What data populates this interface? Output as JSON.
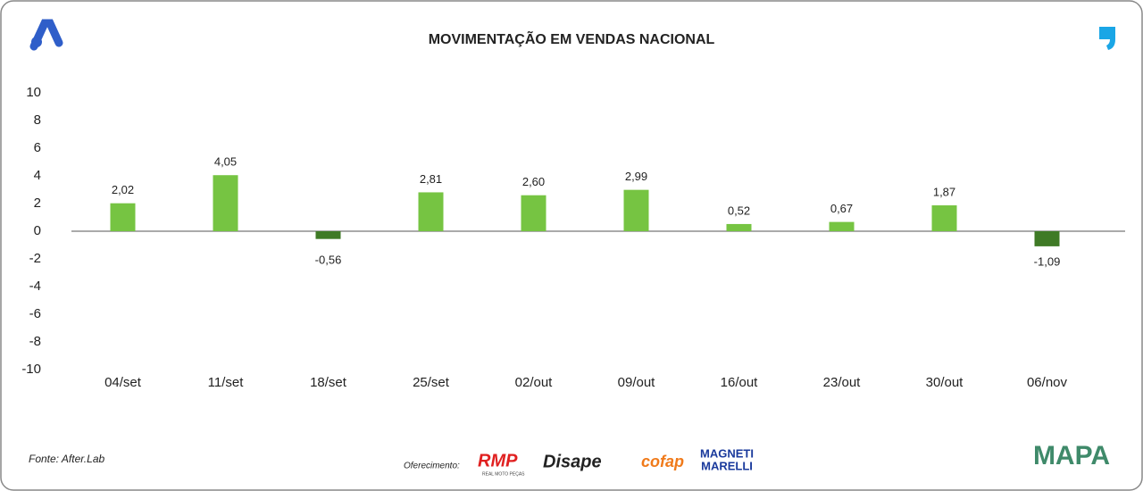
{
  "chart_data": {
    "type": "bar",
    "title": "MOVIMENTAÇÃO EM VENDAS NACIONAL",
    "categories": [
      "04/set",
      "11/set",
      "18/set",
      "25/set",
      "02/out",
      "09/out",
      "16/out",
      "23/out",
      "30/out",
      "06/nov"
    ],
    "values": [
      2.02,
      4.05,
      -0.56,
      2.81,
      2.6,
      2.99,
      0.52,
      0.67,
      1.87,
      -1.09
    ],
    "value_labels": [
      "2,02",
      "4,05",
      "-0,56",
      "2,81",
      "2,60",
      "2,99",
      "0,52",
      "0,67",
      "1,87",
      "-1,09"
    ],
    "color": "#76c442",
    "negative_color": "#3f7a26",
    "ylim": [
      -10,
      10
    ],
    "yticks": [
      -10,
      -8,
      -6,
      -4,
      -2,
      0,
      2,
      4,
      6,
      8,
      10
    ]
  },
  "footer": {
    "source": "Fonte: After.Lab",
    "sponsor_label": "Oferecimento:",
    "sponsors": [
      "RMP",
      "REAL MOTO PEÇAS",
      "Disape",
      "cofap",
      "MAGNETI",
      "MARELLI"
    ],
    "brand": "MAPA"
  }
}
